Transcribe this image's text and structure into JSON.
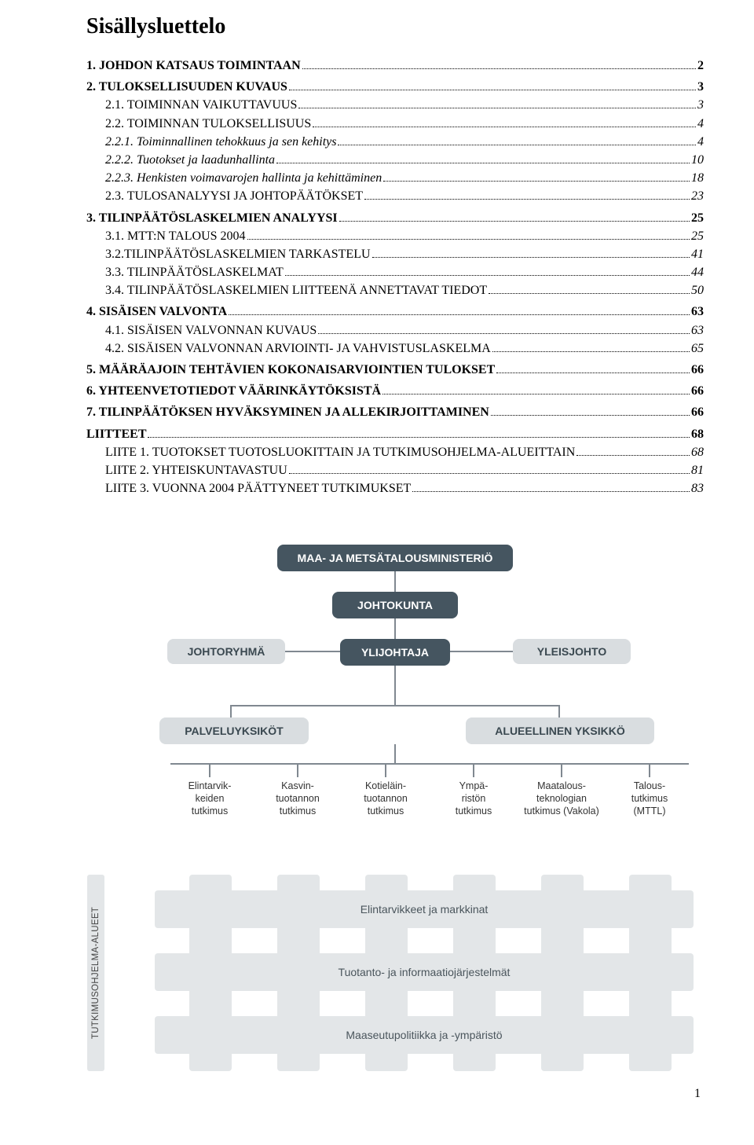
{
  "title": "Sisällysluettelo",
  "toc": [
    {
      "label": "1. JOHDON KATSAUS TOIMINTAAN",
      "page": "2",
      "level": 1
    },
    {
      "label": "2. TULOKSELLISUUDEN KUVAUS",
      "page": "3",
      "level": 1
    },
    {
      "label": "2.1. TOIMINNAN VAIKUTTAVUUS",
      "page": "3",
      "level": 3
    },
    {
      "label": "2.2. TOIMINNAN TULOKSELLISUUS",
      "page": "4",
      "level": 3
    },
    {
      "label": "2.2.1. Toiminnallinen tehokkuus ja sen kehitys",
      "page": "4",
      "level": 2
    },
    {
      "label": "2.2.2. Tuotokset ja laadunhallinta",
      "page": "10",
      "level": 2
    },
    {
      "label": "2.2.3. Henkisten voimavarojen hallinta ja kehittäminen",
      "page": "18",
      "level": 2
    },
    {
      "label": "2.3. TULOSANALYYSI JA JOHTOPÄÄTÖKSET",
      "page": "23",
      "level": 3
    },
    {
      "label": "3. TILINPÄÄTÖSLASKELMIEN ANALYYSI",
      "page": "25",
      "level": 1
    },
    {
      "label": "3.1. MTT:N TALOUS 2004",
      "page": "25",
      "level": 3
    },
    {
      "label": "3.2.TILINPÄÄTÖSLASKELMIEN TARKASTELU",
      "page": "41",
      "level": 3
    },
    {
      "label": "3.3. TILINPÄÄTÖSLASKELMAT",
      "page": "44",
      "level": 3
    },
    {
      "label": "3.4. TILINPÄÄTÖSLASKELMIEN LIITTEENÄ ANNETTAVAT TIEDOT",
      "page": "50",
      "level": 3
    },
    {
      "label": "4. SISÄISEN VALVONTA",
      "page": "63",
      "level": 1
    },
    {
      "label": "4.1. SISÄISEN VALVONNAN KUVAUS",
      "page": "63",
      "level": 3
    },
    {
      "label": "4.2. SISÄISEN VALVONNAN ARVIOINTI- JA VAHVISTUSLASKELMA",
      "page": "65",
      "level": 3
    },
    {
      "label": "5. MÄÄRÄAJOIN TEHTÄVIEN KOKONAISARVIOINTIEN TULOKSET",
      "page": "66",
      "level": 1
    },
    {
      "label": "6. YHTEENVETOTIEDOT VÄÄRINKÄYTÖKSISTÄ",
      "page": "66",
      "level": 1
    },
    {
      "label": "7. TILINPÄÄTÖKSEN HYVÄKSYMINEN JA ALLEKIRJOITTAMINEN",
      "page": "66",
      "level": 1
    },
    {
      "label": "LIITTEET",
      "page": "68",
      "level": 1
    },
    {
      "label": "LIITE 1. TUOTOKSET TUOTOSLUOKITTAIN JA TUTKIMUSOHJELMA-ALUEITTAIN",
      "page": "68",
      "level": 3
    },
    {
      "label": "LIITE 2.  YHTEISKUNTAVASTUU",
      "page": "81",
      "level": 3
    },
    {
      "label": "LIITE 3.  VUONNA 2004 PÄÄTTYNEET TUTKIMUKSET",
      "page": "83",
      "level": 3
    }
  ],
  "org": {
    "top": "MAA- JA METSÄTALOUSMINISTERIÖ",
    "board": "JOHTOKUNTA",
    "mgmtTeam": "JOHTORYHMÄ",
    "director": "YLIJOHTAJA",
    "topMgmt": "YLEISJOHTO",
    "serviceUnits": "PALVELUYKSIKÖT",
    "regionalUnit": "ALUEELLINEN YKSIKKÖ",
    "units": [
      "Elintarvik-\nkeiden\ntutkimus",
      "Kasvin-\ntuotannon\ntutkimus",
      "Kotieläin-\ntuotannon\ntutkimus",
      "Ympä-\nristön\ntutkimus",
      "Maatalous-\nteknologian\ntutkimus (Vakola)",
      "Talous-\ntutkimus\n(MTTL)"
    ],
    "programRows": [
      "Elintarvikkeet ja markkinat",
      "Tuotanto- ja informaatiojärjestelmät",
      "Maaseutupolitiikka ja -ympäristö"
    ],
    "yAxis": "TUTKIMUSOHJELMA-ALUEET",
    "colors": {
      "dark": "#455560",
      "light": "#d9dde0",
      "matrix": "#e3e6e8",
      "connector": "#808890",
      "darkText": "#ffffff",
      "lightText": "#3a4850"
    }
  },
  "pageNumber": "1"
}
